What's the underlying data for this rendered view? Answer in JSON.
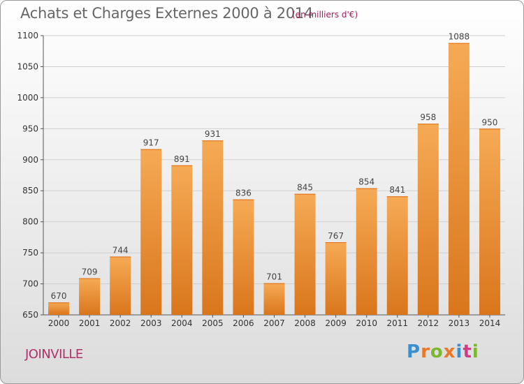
{
  "header": {
    "title": "Achats et Charges Externes 2000 à 2014",
    "subtitle": "(en milliers d'€)"
  },
  "footer": {
    "commune": "JOINVILLE",
    "logo_text": "Proxiti"
  },
  "colors": {
    "bar_top": "#f6aa55",
    "bar_bottom": "#d9761c",
    "grid": "#d0d0d0",
    "title": "#666666",
    "accent": "#b0306a"
  },
  "chart_data": {
    "type": "bar",
    "title": "Achats et Charges Externes 2000 à 2014",
    "subtitle": "(en milliers d'€)",
    "xlabel": "",
    "ylabel": "",
    "categories": [
      "2000",
      "2001",
      "2002",
      "2003",
      "2004",
      "2005",
      "2006",
      "2007",
      "2008",
      "2009",
      "2010",
      "2011",
      "2012",
      "2013",
      "2014"
    ],
    "values": [
      670,
      709,
      744,
      917,
      891,
      931,
      836,
      701,
      845,
      767,
      854,
      841,
      958,
      1088,
      950
    ],
    "ylim": [
      650,
      1100
    ],
    "yticks": [
      650,
      700,
      750,
      800,
      850,
      900,
      950,
      1000,
      1050,
      1100
    ],
    "grid": true,
    "legend": "none"
  }
}
